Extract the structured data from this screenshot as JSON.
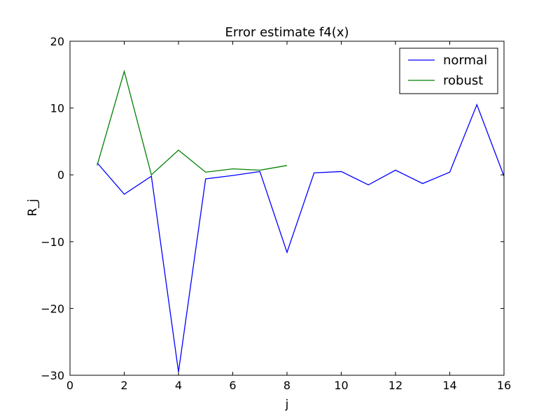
{
  "chart_data": {
    "type": "line",
    "title": "Error estimate f4(x)",
    "xlabel": "j",
    "ylabel": "R_j",
    "xlim": [
      0,
      16
    ],
    "ylim": [
      -30,
      20
    ],
    "xticks": [
      0,
      2,
      4,
      6,
      8,
      10,
      12,
      14,
      16
    ],
    "yticks": [
      -30,
      -20,
      -10,
      0,
      10,
      20
    ],
    "xtick_labels": [
      "0",
      "2",
      "4",
      "6",
      "8",
      "10",
      "12",
      "14",
      "16"
    ],
    "ytick_labels": [
      "−30",
      "−20",
      "−10",
      "0",
      "10",
      "20"
    ],
    "grid": false,
    "legend": "top-right",
    "series": [
      {
        "name": "normal",
        "color": "#0000ff",
        "x": [
          1,
          2,
          3,
          4,
          5,
          6,
          7,
          8,
          9,
          10,
          11,
          12,
          13,
          14,
          15,
          16
        ],
        "y": [
          1.8,
          -2.9,
          -0.2,
          -29.5,
          -0.6,
          -0.1,
          0.5,
          -11.6,
          0.3,
          0.5,
          -1.5,
          0.7,
          -1.3,
          0.4,
          10.5,
          -0.2
        ]
      },
      {
        "name": "robust",
        "color": "#008000",
        "x": [
          1,
          2,
          3,
          4,
          5,
          6,
          7,
          8
        ],
        "y": [
          1.4,
          15.5,
          0.0,
          3.7,
          0.4,
          0.9,
          0.7,
          1.4
        ]
      }
    ]
  }
}
